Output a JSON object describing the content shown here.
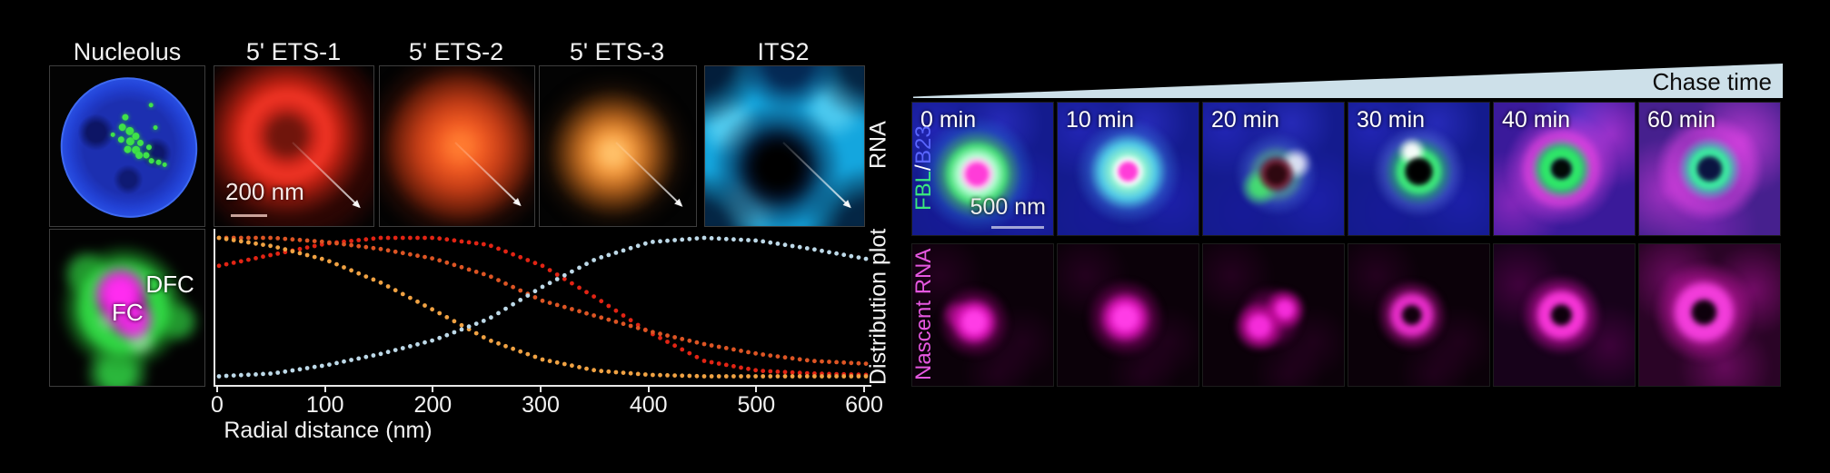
{
  "panel_left": {
    "column_titles": [
      "Nucleolus",
      "5' ETS-1",
      "5' ETS-2",
      "5' ETS-3",
      "ITS2"
    ],
    "row1_side_label": "RNA",
    "row2_side_label": "Distribution plot",
    "scale_bar": "200 nm",
    "dfc_label": "DFC",
    "fc_label": "FC"
  },
  "chart_data": {
    "type": "scatter",
    "title": "Distribution plot",
    "xlabel": "Radial distance (nm)",
    "ylabel": "",
    "xlim": [
      0,
      600
    ],
    "ylim": [
      0,
      1
    ],
    "x_ticks": [
      0,
      100,
      200,
      300,
      400,
      500,
      600
    ],
    "grid": false,
    "legend": "none",
    "x": [
      0,
      50,
      100,
      150,
      200,
      250,
      300,
      350,
      400,
      450,
      500,
      550,
      600
    ],
    "series": [
      {
        "name": "5' ETS-1",
        "color": "#e22414",
        "values": [
          0.8,
          0.88,
          0.96,
          1.0,
          1.0,
          0.95,
          0.8,
          0.57,
          0.32,
          0.12,
          0.05,
          0.03,
          0.02
        ]
      },
      {
        "name": "5' ETS-2",
        "color": "#dd5524",
        "values": [
          1.0,
          1.0,
          0.97,
          0.92,
          0.85,
          0.73,
          0.55,
          0.44,
          0.33,
          0.24,
          0.17,
          0.12,
          0.1
        ]
      },
      {
        "name": "5' ETS-3",
        "color": "#f0a243",
        "values": [
          1.0,
          0.94,
          0.84,
          0.68,
          0.48,
          0.27,
          0.13,
          0.05,
          0.02,
          0.01,
          0.01,
          0.01,
          0.01
        ]
      },
      {
        "name": "ITS2",
        "color": "#bdd9e8",
        "values": [
          0.01,
          0.03,
          0.09,
          0.17,
          0.27,
          0.42,
          0.65,
          0.85,
          0.97,
          1.0,
          0.98,
          0.92,
          0.85
        ]
      }
    ]
  },
  "panel_right": {
    "wedge_label": "Chase time",
    "times": [
      "0 min",
      "10 min",
      "20 min",
      "30 min",
      "40 min",
      "60 min"
    ],
    "row1_side_label": {
      "part1": "FBL",
      "sep": " / ",
      "part2": "B23"
    },
    "row2_side_label": "Nascent RNA",
    "scale_bar": "500 nm"
  },
  "colors": {
    "ets1_red": "#e22414",
    "ets2_orange_red": "#dd5524",
    "ets3_orange": "#f0a243",
    "its2_cyan": "#1fb4ea",
    "fbl_green": "#3be87e",
    "b23_blue": "#5a66ff",
    "nascent_magenta": "#e558e0",
    "chase_wedge": "#cde0e9"
  }
}
